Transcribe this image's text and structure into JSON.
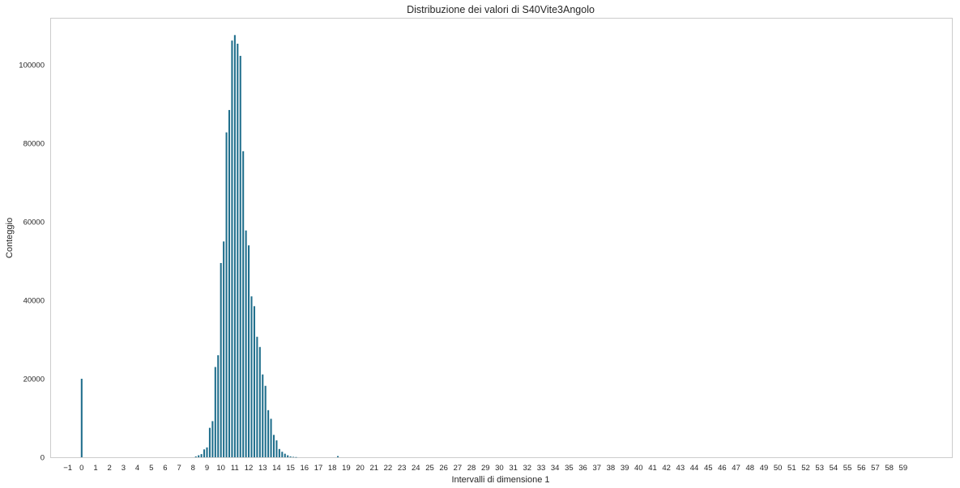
{
  "chart_data": {
    "type": "bar",
    "title": "Distribuzione dei valori di S40Vite3Angolo",
    "xlabel": "Intervalli di dimensione 1",
    "ylabel": "Conteggio",
    "xlim": [
      -2.2,
      62.5
    ],
    "ylim": [
      0,
      112000
    ],
    "grid": false,
    "bar_width": 0.12,
    "bar_color": "#1f6e8c",
    "x_ticks": [
      -1,
      0,
      1,
      2,
      3,
      4,
      5,
      6,
      7,
      8,
      9,
      10,
      11,
      12,
      13,
      14,
      15,
      16,
      17,
      18,
      19,
      20,
      21,
      22,
      23,
      24,
      25,
      26,
      27,
      28,
      29,
      30,
      31,
      32,
      33,
      34,
      35,
      36,
      37,
      38,
      39,
      40,
      41,
      42,
      43,
      44,
      45,
      46,
      47,
      48,
      49,
      50,
      51,
      52,
      53,
      54,
      55,
      56,
      57,
      58,
      59
    ],
    "x_tick_labels": [
      "−1",
      "0",
      "1",
      "2",
      "3",
      "4",
      "5",
      "6",
      "7",
      "8",
      "9",
      "10",
      "11",
      "12",
      "13",
      "14",
      "15",
      "16",
      "17",
      "18",
      "19",
      "20",
      "21",
      "22",
      "23",
      "24",
      "25",
      "26",
      "27",
      "28",
      "29",
      "30",
      "31",
      "32",
      "33",
      "34",
      "35",
      "36",
      "37",
      "38",
      "39",
      "40",
      "41",
      "42",
      "43",
      "44",
      "45",
      "46",
      "47",
      "48",
      "49",
      "50",
      "51",
      "52",
      "53",
      "54",
      "55",
      "56",
      "57",
      "58",
      "59"
    ],
    "y_ticks": [
      0,
      20000,
      40000,
      60000,
      80000,
      100000
    ],
    "y_tick_labels": [
      "0",
      "20000",
      "40000",
      "60000",
      "80000",
      "100000"
    ],
    "x": [
      0,
      8.2,
      8.4,
      8.6,
      8.8,
      9.0,
      9.2,
      9.4,
      9.6,
      9.8,
      10.0,
      10.2,
      10.4,
      10.6,
      10.8,
      11.0,
      11.2,
      11.4,
      11.6,
      11.8,
      12.0,
      12.2,
      12.4,
      12.6,
      12.8,
      13.0,
      13.2,
      13.4,
      13.6,
      13.8,
      14.0,
      14.2,
      14.4,
      14.6,
      14.8,
      15.0,
      15.2,
      15.4,
      15.6,
      15.8,
      16.0,
      16.2,
      16.4,
      16.6,
      16.8,
      17.0,
      17.2,
      18.4
    ],
    "values": [
      20000,
      200,
      500,
      800,
      2000,
      2500,
      7500,
      9200,
      23000,
      26000,
      49500,
      55000,
      82800,
      88500,
      106200,
      107600,
      105400,
      102300,
      78000,
      57800,
      54000,
      41000,
      38500,
      30700,
      28100,
      21100,
      18200,
      12000,
      9800,
      5700,
      4300,
      2100,
      1400,
      900,
      500,
      200,
      100,
      50,
      0,
      0,
      0,
      0,
      0,
      0,
      0,
      0,
      0,
      300
    ]
  }
}
